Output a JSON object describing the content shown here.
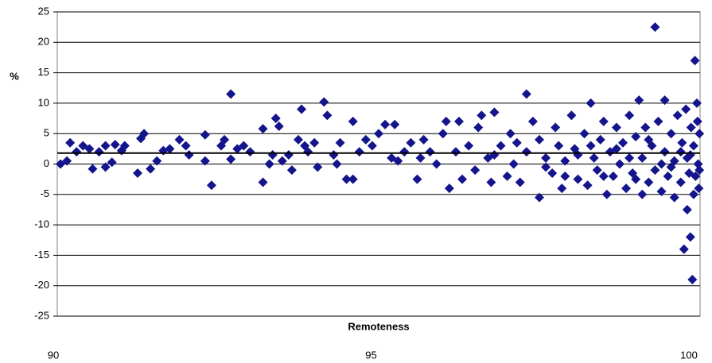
{
  "chart_data": {
    "type": "scatter",
    "x_label": "Remoteness",
    "y_label": "%",
    "color": "#14148c",
    "mean_line": 1.8,
    "mean_line_color": "#000000",
    "xlim": [
      90,
      100
    ],
    "xticks": [
      90,
      95,
      100
    ],
    "ylim": [
      -25,
      25
    ],
    "yticks": [
      25,
      20,
      15,
      10,
      5,
      0,
      -5,
      -10,
      -15,
      -20,
      -25
    ],
    "grid": true,
    "x": [
      90.05,
      90.15,
      90.2,
      90.3,
      90.4,
      90.5,
      90.55,
      90.65,
      90.75,
      90.75,
      90.85,
      90.9,
      91.0,
      91.05,
      91.25,
      91.3,
      91.35,
      91.45,
      91.55,
      91.65,
      91.75,
      91.9,
      92.0,
      92.05,
      92.3,
      92.3,
      92.4,
      92.55,
      92.6,
      92.7,
      92.7,
      92.8,
      92.9,
      93.0,
      93.2,
      93.2,
      93.3,
      93.35,
      93.4,
      93.45,
      93.5,
      93.6,
      93.65,
      93.75,
      93.8,
      93.85,
      93.9,
      94.0,
      94.05,
      94.15,
      94.2,
      94.3,
      94.35,
      94.4,
      94.5,
      94.6,
      94.6,
      94.7,
      94.8,
      94.9,
      95.0,
      95.1,
      95.2,
      95.25,
      95.3,
      95.4,
      95.5,
      95.6,
      95.65,
      95.7,
      95.8,
      95.9,
      96.0,
      96.05,
      96.1,
      96.2,
      96.25,
      96.3,
      96.4,
      96.5,
      96.55,
      96.6,
      96.7,
      96.75,
      96.8,
      96.9,
      97.0,
      97.05,
      97.1,
      97.2,
      97.3,
      97.3,
      97.4,
      97.5,
      97.5,
      97.6,
      97.7,
      97.75,
      97.8,
      97.85,
      97.9,
      98.0,
      98.05,
      98.1,
      98.2,
      98.25,
      98.3,
      98.35,
      98.4,
      98.45,
      98.5,
      98.55,
      98.6,
      98.65,
      98.7,
      98.75,
      98.8,
      98.85,
      98.9,
      98.95,
      99.0,
      99.05,
      99.1,
      99.1,
      99.15,
      99.2,
      99.25,
      99.3,
      99.3,
      99.35,
      99.4,
      99.45,
      99.45,
      99.5,
      99.55,
      99.6,
      99.6,
      99.65,
      99.7,
      99.72,
      99.75,
      99.78,
      99.8,
      99.8,
      99.83,
      99.85,
      99.86,
      99.88,
      99.9,
      99.9,
      99.92,
      99.93,
      99.95,
      99.96,
      99.97,
      99.98,
      99.99,
      99.99,
      97.15,
      97.6,
      98.1,
      98.5,
      98.7,
      99.0,
      99.2,
      99.4,
      99.55,
      99.7,
      99.85,
      96.8,
      97.9,
      98.3,
      98.9
    ],
    "values": [
      0,
      0.5,
      3.5,
      2,
      3,
      2.5,
      -0.8,
      2,
      3,
      -0.5,
      0.3,
      3.2,
      2.2,
      3,
      -1.5,
      4.2,
      5,
      -0.8,
      0.5,
      2.2,
      2.5,
      4,
      3,
      1.5,
      0.5,
      4.8,
      -3.5,
      3,
      4,
      11.5,
      0.8,
      2.5,
      3,
      2,
      -3,
      5.8,
      0,
      1.5,
      7.5,
      6.2,
      0.5,
      1.5,
      -1,
      4,
      9,
      3,
      2,
      3.5,
      -0.5,
      10.2,
      8,
      1.5,
      0,
      3.5,
      -2.5,
      7,
      -2.5,
      2,
      4,
      3,
      5,
      6.5,
      1,
      6.5,
      0.5,
      2,
      3.5,
      -2.5,
      1,
      4,
      2,
      0,
      5,
      7,
      -4,
      2,
      7,
      -2.5,
      3,
      -1,
      6,
      8,
      1,
      -3,
      8.5,
      3,
      -2,
      5,
      0,
      -3,
      11.5,
      2,
      7,
      -5.5,
      4,
      1,
      -1.5,
      6,
      3,
      -4,
      0.5,
      8,
      2.5,
      -2.5,
      5,
      -3.5,
      10,
      1,
      -1,
      4,
      7,
      -5,
      2,
      -2,
      6,
      0,
      3.5,
      -4,
      8,
      -1.5,
      4.5,
      10.5,
      -5,
      1,
      6,
      -3,
      3,
      22.5,
      -1,
      7,
      -4.5,
      10.5,
      2,
      -2,
      5,
      -5.5,
      0.5,
      8,
      -3,
      3.5,
      -14,
      9,
      -7.5,
      1,
      -1.5,
      -12,
      6,
      -19,
      -5,
      3,
      17,
      -2,
      10,
      7,
      0,
      -4,
      -1,
      5,
      3.5,
      -0.5,
      1.5,
      -2,
      2.5,
      -2.5,
      4,
      0,
      -0.5,
      2,
      1.5,
      1.5,
      -2,
      3,
      1
    ]
  }
}
